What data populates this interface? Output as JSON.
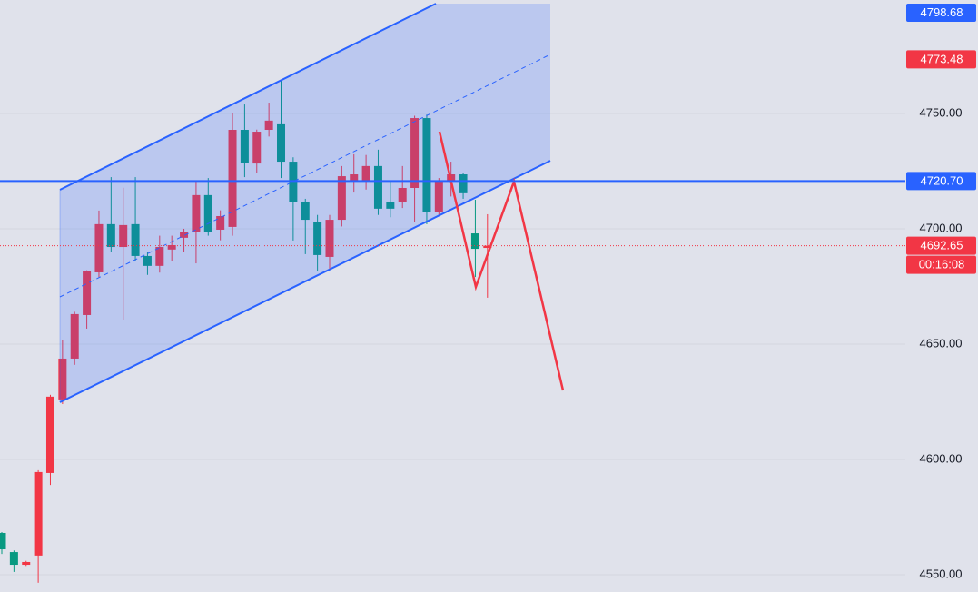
{
  "chart_data": {
    "type": "candlestick",
    "open": [
      4568.1,
      4559.8,
      4554.3,
      4558.3,
      4594.1,
      4626.0,
      4643.7,
      4662.6,
      4681.1,
      4702.0,
      4692.1,
      4702.0,
      4688.2,
      4683.9,
      4691.0,
      4696.1,
      4698.8,
      4714.6,
      4699.6,
      4700.8,
      4742.9,
      4728.3,
      4742.9,
      4745.3,
      4729.1,
      4711.8,
      4703.1,
      4687.8,
      4703.9,
      4720.5,
      4720.9,
      4727.2,
      4711.8,
      4711.8,
      4717.7,
      4748.0,
      4707.1,
      4720.5,
      4723.6,
      4698.0,
      4691.7
    ],
    "high": [
      4568.5,
      4560.5,
      4556,
      4595.3,
      4628,
      4651.6,
      4664,
      4682,
      4707.9,
      4722.4,
      4717.8,
      4722.4,
      4690,
      4697,
      4697,
      4700,
      4720.5,
      4722,
      4708,
      4750,
      4753.9,
      4743,
      4754.7,
      4764.6,
      4731,
      4713,
      4706,
      4706,
      4727.2,
      4732.3,
      4732,
      4734.3,
      4721,
      4727.2,
      4749,
      4749.5,
      4722,
      4729.1,
      4724,
      4712.6,
      4706.3
    ],
    "low": [
      4559,
      4551.2,
      4553.8,
      4546.5,
      4588.9,
      4624,
      4641,
      4656.7,
      4679,
      4690,
      4660.6,
      4686,
      4680,
      4681,
      4686,
      4689.8,
      4685,
      4697,
      4695,
      4697,
      4722.4,
      4724.4,
      4740,
      4722,
      4694.9,
      4689,
      4681.6,
      4682.3,
      4701,
      4715.7,
      4717,
      4706,
      4705,
      4709,
      4702.8,
      4702,
      4706,
      4714,
      4713,
      4679.1,
      4670.1
    ],
    "close": [
      4561.0,
      4554.3,
      4555.5,
      4594.5,
      4627.2,
      4643.7,
      4663.0,
      4681.5,
      4702.0,
      4692.1,
      4701.6,
      4688.2,
      4683.9,
      4692.1,
      4692.9,
      4698.8,
      4714.6,
      4698.8,
      4705.5,
      4742.9,
      4728.7,
      4742.1,
      4746.9,
      4729.1,
      4711.8,
      4703.9,
      4688.6,
      4703.9,
      4722.8,
      4723.6,
      4727.2,
      4708.7,
      4708.7,
      4717.7,
      4748.0,
      4707.1,
      4720.5,
      4723.6,
      4715.4,
      4691.3,
      4692.65
    ],
    "up_color": "#f23645",
    "down_color": "#089981",
    "ylim": [
      4542.5,
      4799.2
    ],
    "yticks": [
      {
        "value": 4550,
        "label": "4550.00"
      },
      {
        "value": 4600,
        "label": "4600.00"
      },
      {
        "value": 4650,
        "label": "4650.00"
      },
      {
        "value": 4700,
        "label": "4700.00"
      },
      {
        "value": 4750,
        "label": "4750.00"
      }
    ],
    "grid": true,
    "price_markers": [
      {
        "value": 4798.68,
        "color": "#2962ff"
      },
      {
        "value": 4773.48,
        "color": "#f23645"
      },
      {
        "value": 4720.7,
        "label": "4720.70",
        "color": "#2962ff"
      },
      {
        "value": 4692.65,
        "color": "#f23645"
      }
    ],
    "countdown": "00:16:08"
  }
}
